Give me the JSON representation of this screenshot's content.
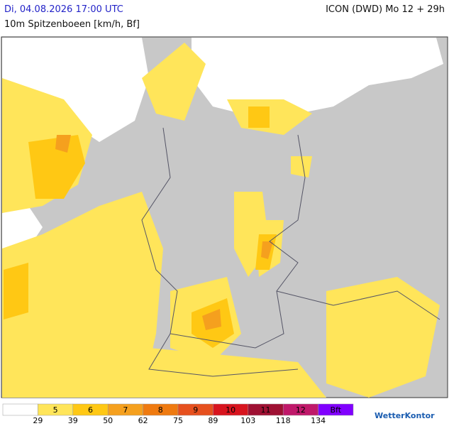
{
  "header": {
    "datetime": "Di, 04.08.2026 17:00 UTC",
    "model": "ICON (DWD) Mo 12 + 29h",
    "subtitle": "10m Spitzenboeen [km/h, Bf]"
  },
  "legend": {
    "bins": [
      {
        "label": null,
        "color": "#ffffff"
      },
      {
        "label": 5,
        "color": "#ffe55a"
      },
      {
        "label": 6,
        "color": "#ffc814"
      },
      {
        "label": 7,
        "color": "#f5a01e"
      },
      {
        "label": 8,
        "color": "#ef7a10"
      },
      {
        "label": 9,
        "color": "#e6501e"
      },
      {
        "label": 10,
        "color": "#d8141e"
      },
      {
        "label": 11,
        "color": "#9e1032"
      },
      {
        "label": 12,
        "color": "#c0186a"
      },
      {
        "label": "Bft",
        "color": "#8000ff"
      }
    ],
    "thresholds": [
      29,
      39,
      50,
      62,
      75,
      89,
      103,
      118,
      134
    ]
  },
  "logo": "WetterKontor"
}
